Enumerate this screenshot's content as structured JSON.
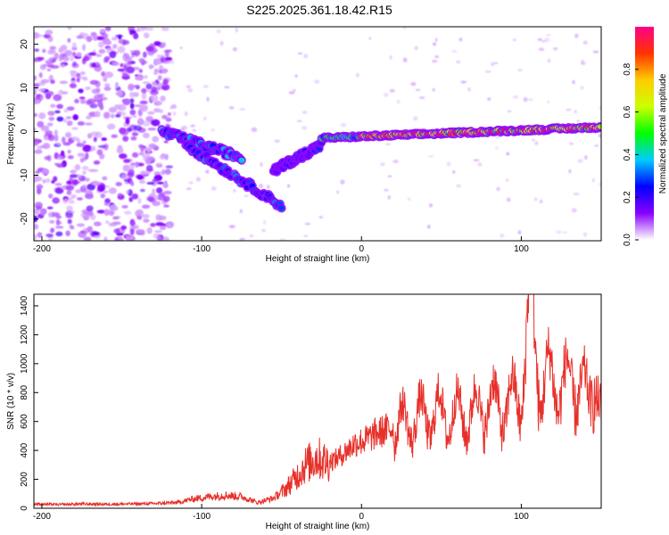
{
  "figure_title": "S225.2025.361.18.42.R15",
  "chart_data": [
    {
      "type": "heatmap",
      "title": "",
      "xlabel": "Height of straight line (km)",
      "ylabel": "Frequency (Hz)",
      "xlim": [
        -205,
        150
      ],
      "ylim": [
        -25,
        24
      ],
      "x_ticks": [
        -200,
        -100,
        0,
        100
      ],
      "y_ticks": [
        -20,
        -10,
        0,
        10,
        20
      ],
      "colorbar": {
        "label": "Normalized spectral amplitude",
        "range": [
          0,
          1
        ],
        "ticks": [
          0.0,
          0.2,
          0.4,
          0.6,
          0.8
        ],
        "stops": [
          "#ffffff",
          "#8800ff",
          "#0000ff",
          "#00ccff",
          "#00ff00",
          "#ccff00",
          "#ffcc00",
          "#ff3300",
          "#ff0088"
        ]
      },
      "features": [
        {
          "name": "scattered noise",
          "x": [
            -205,
            -120
          ],
          "y": [
            -25,
            24
          ],
          "amplitude": 0.1
        },
        {
          "name": "descending trace 1",
          "x": [
            -125,
            -75
          ],
          "y_start": 0,
          "y_end": -6,
          "amplitude": 0.35
        },
        {
          "name": "descending trace 2",
          "x": [
            -110,
            -50
          ],
          "y_start": -3,
          "y_end": -17,
          "amplitude": 0.3
        },
        {
          "name": "rising trace",
          "x": [
            -55,
            -25
          ],
          "y_start": -9,
          "y_end": -3,
          "amplitude": 0.25
        },
        {
          "name": "ridge",
          "x": [
            -25,
            150
          ],
          "y_start": -1.5,
          "y_end": 1,
          "amplitude": 0.9
        }
      ]
    },
    {
      "type": "line",
      "title": "",
      "xlabel": "Height of straight line (km)",
      "ylabel": "SNR (10 * v/v)",
      "xlim": [
        -205,
        150
      ],
      "ylim": [
        0,
        1480
      ],
      "x_ticks": [
        -200,
        -100,
        0,
        100
      ],
      "y_ticks": [
        0,
        200,
        400,
        600,
        800,
        1000,
        1200,
        1400
      ],
      "color": "#e8302a",
      "series": [
        {
          "name": "SNR",
          "x": [
            -205,
            -190,
            -175,
            -160,
            -145,
            -130,
            -115,
            -105,
            -95,
            -85,
            -75,
            -65,
            -55,
            -48,
            -42,
            -35,
            -28,
            -22,
            -16,
            -10,
            -4,
            2,
            10,
            20,
            30,
            40,
            50,
            60,
            70,
            80,
            90,
            100,
            106,
            112,
            120,
            128,
            135,
            142,
            146,
            150
          ],
          "values": [
            30,
            25,
            30,
            28,
            30,
            32,
            40,
            65,
            80,
            90,
            80,
            40,
            70,
            130,
            200,
            300,
            350,
            320,
            340,
            390,
            450,
            470,
            520,
            560,
            600,
            630,
            650,
            640,
            660,
            720,
            700,
            780,
            1480,
            820,
            900,
            830,
            900,
            700,
            1000,
            600
          ]
        }
      ]
    }
  ]
}
